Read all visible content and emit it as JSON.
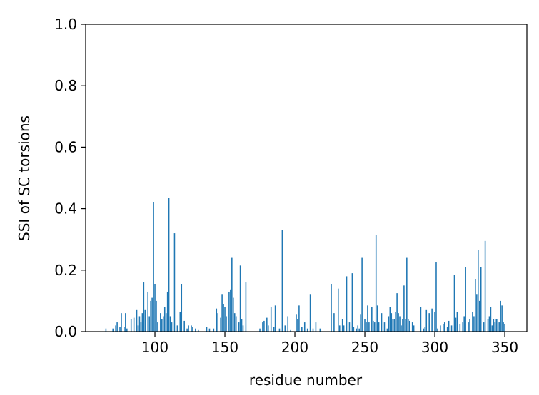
{
  "chart_data": {
    "type": "bar",
    "xlabel": "residue number",
    "ylabel": "SSI of SC torsions",
    "color": "#1f77b4",
    "xlim": [
      50.5,
      365.8
    ],
    "ylim": [
      0,
      1
    ],
    "xticks": [
      100,
      150,
      200,
      250,
      300,
      350
    ],
    "yticks": [
      {
        "value": 0,
        "label": "0.0"
      },
      {
        "value": 0.2,
        "label": "0.2"
      },
      {
        "value": 0.4,
        "label": "0.4"
      },
      {
        "value": 0.6,
        "label": "0.6"
      },
      {
        "value": 0.8,
        "label": "0.8"
      },
      {
        "value": 1,
        "label": "1.0"
      }
    ],
    "x": [
      65,
      70,
      72,
      73,
      75,
      76,
      78,
      79,
      80,
      83,
      85,
      87,
      88,
      89,
      90,
      91,
      92,
      93,
      95,
      96,
      97,
      98,
      99,
      100,
      101,
      102,
      104,
      105,
      106,
      107,
      108,
      109,
      110,
      111,
      112,
      114,
      116,
      118,
      119,
      121,
      123,
      124,
      126,
      127,
      129,
      131,
      137,
      139,
      142,
      144,
      145,
      147,
      148,
      149,
      150,
      151,
      153,
      154,
      155,
      156,
      157,
      158,
      160,
      161,
      162,
      163,
      165,
      175,
      177,
      178,
      180,
      181,
      183,
      185,
      186,
      189,
      191,
      193,
      195,
      197,
      201,
      202,
      203,
      205,
      207,
      209,
      211,
      213,
      215,
      218,
      226,
      228,
      231,
      232,
      234,
      235,
      237,
      239,
      241,
      242,
      244,
      245,
      246,
      247,
      248,
      250,
      251,
      252,
      253,
      255,
      256,
      257,
      258,
      259,
      260,
      262,
      264,
      266,
      267,
      268,
      269,
      270,
      271,
      272,
      273,
      274,
      275,
      276,
      277,
      278,
      279,
      280,
      281,
      282,
      284,
      285,
      290,
      292,
      293,
      294,
      296,
      298,
      300,
      301,
      302,
      304,
      306,
      307,
      309,
      310,
      312,
      314,
      315,
      316,
      318,
      320,
      321,
      322,
      324,
      325,
      327,
      328,
      329,
      330,
      331,
      332,
      333,
      335,
      336,
      338,
      339,
      340,
      341,
      342,
      343,
      344,
      345,
      346,
      347,
      348,
      349,
      350
    ],
    "values": [
      0.01,
      0.01,
      0.02,
      0.03,
      0.015,
      0.06,
      0.015,
      0.06,
      0.01,
      0.04,
      0.045,
      0.07,
      0.02,
      0.05,
      0.03,
      0.06,
      0.16,
      0.07,
      0.13,
      0.05,
      0.1,
      0.11,
      0.42,
      0.155,
      0.1,
      0.03,
      0.06,
      0.04,
      0.05,
      0.08,
      0.06,
      0.13,
      0.435,
      0.05,
      0.03,
      0.32,
      0.02,
      0.065,
      0.155,
      0.035,
      0.01,
      0.02,
      0.02,
      0.015,
      0.01,
      0.005,
      0.015,
      0.01,
      0.01,
      0.075,
      0.06,
      0.045,
      0.12,
      0.09,
      0.08,
      0.05,
      0.13,
      0.135,
      0.24,
      0.11,
      0.06,
      0.05,
      0.03,
      0.215,
      0.04,
      0.02,
      0.16,
      0.01,
      0.03,
      0.035,
      0.045,
      0.02,
      0.08,
      0.015,
      0.085,
      0.01,
      0.33,
      0.02,
      0.05,
      0.005,
      0.055,
      0.04,
      0.085,
      0.015,
      0.03,
      0.01,
      0.12,
      0.01,
      0.03,
      0.01,
      0.155,
      0.06,
      0.14,
      0.02,
      0.04,
      0.02,
      0.18,
      0.03,
      0.19,
      0.015,
      0.01,
      0.02,
      0.01,
      0.055,
      0.24,
      0.04,
      0.03,
      0.085,
      0.03,
      0.08,
      0.035,
      0.03,
      0.315,
      0.085,
      0.03,
      0.06,
      0.03,
      0.01,
      0.05,
      0.08,
      0.06,
      0.04,
      0.04,
      0.065,
      0.125,
      0.06,
      0.05,
      0.02,
      0.04,
      0.15,
      0.04,
      0.24,
      0.04,
      0.035,
      0.03,
      0.02,
      0.08,
      0.01,
      0.015,
      0.07,
      0.06,
      0.075,
      0.065,
      0.225,
      0.01,
      0.02,
      0.025,
      0.03,
      0.015,
      0.035,
      0.02,
      0.185,
      0.045,
      0.065,
      0.025,
      0.03,
      0.05,
      0.21,
      0.03,
      0.04,
      0.065,
      0.05,
      0.17,
      0.12,
      0.265,
      0.1,
      0.21,
      0.03,
      0.295,
      0.04,
      0.05,
      0.08,
      0.02,
      0.04,
      0.03,
      0.04,
      0.04,
      0.03,
      0.1,
      0.085,
      0.03,
      0.025
    ]
  }
}
